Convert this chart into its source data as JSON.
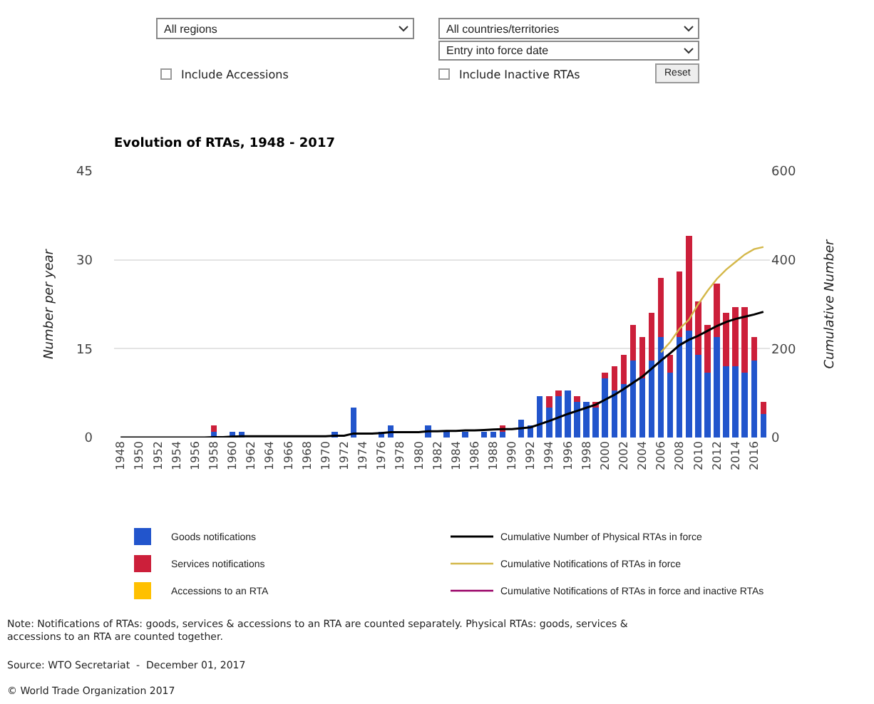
{
  "chart_data": {
    "type": "bar",
    "stacked": true,
    "title": "Evolution of RTAs, 1948 - 2017",
    "ylabel": "Number per year",
    "y2label": "Cumulative Number",
    "categories": [
      "1948",
      null,
      "1950",
      null,
      "1952",
      null,
      "1954",
      null,
      "1956",
      null,
      "1958",
      null,
      "1960",
      null,
      "1962",
      null,
      "1964",
      null,
      "1966",
      null,
      "1968",
      null,
      "1970",
      null,
      "1972",
      null,
      "1974",
      null,
      "1976",
      null,
      "1978",
      null,
      "1980",
      null,
      "1982",
      null,
      "1984",
      null,
      "1986",
      null,
      "1988",
      null,
      "1990",
      null,
      "1992",
      null,
      "1994",
      null,
      "1996",
      null,
      "1998",
      null,
      "2000",
      null,
      "2002",
      null,
      "2004",
      null,
      "2006",
      null,
      "2008",
      null,
      "2010",
      null,
      "2012",
      null,
      "2014",
      null,
      "2016",
      null
    ],
    "series": [
      {
        "name": "Goods notifications",
        "color": "#2255cc",
        "values": [
          0,
          0,
          0,
          0,
          0,
          0,
          0,
          0,
          0,
          0,
          1,
          0,
          1,
          1,
          0,
          0,
          0,
          0,
          0,
          0,
          0,
          0,
          0,
          1,
          0,
          5,
          0,
          0,
          1,
          2,
          0,
          0,
          0,
          2,
          0,
          1,
          0,
          1,
          0,
          1,
          1,
          1,
          0,
          3,
          2,
          7,
          5,
          7,
          8,
          6,
          6,
          5,
          10,
          8,
          9,
          13,
          10,
          13,
          17,
          11,
          17,
          18,
          14,
          11,
          17,
          12,
          12,
          11,
          13,
          4
        ]
      },
      {
        "name": "Services notifications",
        "color": "#cc1f3a",
        "values": [
          0,
          0,
          0,
          0,
          0,
          0,
          0,
          0,
          0,
          0,
          1,
          0,
          0,
          0,
          0,
          0,
          0,
          0,
          0,
          0,
          0,
          0,
          0,
          0,
          0,
          0,
          0,
          0,
          0,
          0,
          0,
          0,
          0,
          0,
          0,
          0,
          0,
          0,
          0,
          0,
          0,
          1,
          0,
          0,
          0,
          0,
          2,
          1,
          0,
          1,
          0,
          1,
          1,
          4,
          5,
          6,
          7,
          8,
          10,
          3,
          11,
          16,
          9,
          8,
          9,
          9,
          10,
          11,
          4,
          2
        ]
      },
      {
        "name": "Accessions to an RTA",
        "color": "#ffc000",
        "values": [
          null,
          null,
          null,
          null,
          null,
          null,
          null,
          null,
          null,
          null,
          null,
          null,
          null,
          null,
          null,
          null,
          null,
          null,
          null,
          null,
          null,
          null,
          null,
          null,
          null,
          null,
          null,
          null,
          null,
          null,
          null,
          null,
          null,
          null,
          null,
          null,
          null,
          null,
          null,
          null,
          null,
          null,
          null,
          null,
          null,
          null,
          null,
          null,
          null,
          null,
          null,
          null,
          null,
          null,
          null,
          null,
          null,
          null,
          null,
          null,
          null,
          null,
          null,
          null,
          null,
          null,
          null,
          null,
          null,
          null
        ]
      },
      {
        "name": "Cumulative Number of Physical RTAs in force",
        "type": "line",
        "axis": "y2",
        "color": "#000000",
        "values": [
          0,
          0,
          0,
          0,
          0,
          0,
          0,
          0,
          0,
          0,
          1,
          1,
          2,
          3,
          3,
          3,
          3,
          3,
          3,
          3,
          3,
          3,
          3,
          4,
          4,
          9,
          9,
          9,
          10,
          12,
          12,
          12,
          12,
          14,
          14,
          15,
          15,
          16,
          16,
          17,
          18,
          19,
          19,
          21,
          23,
          30,
          37,
          45,
          53,
          60,
          67,
          74,
          85,
          96,
          109,
          123,
          137,
          155,
          173,
          190,
          208,
          220,
          229,
          240,
          251,
          260,
          267,
          272,
          277,
          283
        ]
      },
      {
        "name": "Cumulative Notifications of RTAs in force",
        "type": "line",
        "axis": "y2",
        "color": "#d4b84a",
        "values": [
          null,
          null,
          null,
          null,
          null,
          null,
          null,
          null,
          null,
          null,
          null,
          null,
          null,
          null,
          null,
          null,
          null,
          null,
          null,
          null,
          null,
          null,
          null,
          null,
          null,
          null,
          null,
          null,
          null,
          null,
          null,
          null,
          null,
          null,
          null,
          null,
          null,
          null,
          null,
          null,
          null,
          null,
          null,
          null,
          null,
          null,
          null,
          null,
          null,
          null,
          null,
          null,
          null,
          null,
          null,
          null,
          null,
          null,
          192,
          215,
          245,
          265,
          300,
          330,
          357,
          378,
          395,
          412,
          424,
          429
        ]
      },
      {
        "name": "Cumulative Notifications of RTAs in force and inactive RTAs",
        "type": "line",
        "axis": "y2",
        "color": "#990066",
        "values": [
          null,
          null,
          null,
          null,
          null,
          null,
          null,
          null,
          null,
          null,
          null,
          null,
          null,
          null,
          null,
          null,
          null,
          null,
          null,
          null,
          null,
          null,
          null,
          null,
          null,
          null,
          null,
          null,
          null,
          null,
          null,
          null,
          null,
          null,
          null,
          null,
          null,
          null,
          null,
          null,
          null,
          null,
          null,
          null,
          null,
          null,
          null,
          null,
          null,
          null,
          null,
          null,
          null,
          null,
          null,
          null,
          null,
          null,
          null,
          null,
          null,
          null,
          null,
          null,
          null,
          null,
          null,
          null,
          null,
          null
        ]
      }
    ],
    "ylim": [
      0,
      45
    ],
    "yticks": [
      0,
      15,
      30,
      45
    ],
    "y2lim": [
      0,
      600
    ],
    "y2ticks": [
      0,
      200,
      400,
      600
    ],
    "grid": "y",
    "legend": "bottom",
    "marker": "none",
    "annotations": [
      "All regions",
      "All countries/territories",
      "Entry into force date",
      "Include Accessions",
      "Include Inactive RTAs",
      "Reset",
      "Note: Notifications of RTAs: goods, services & accessions to an RTA are counted separately. Physical RTAs: goods, services & accessions to an RTA are counted together.",
      "Source: WTO Secretariat  -  December 01, 2017",
      "© World Trade Organization 2017"
    ]
  }
}
